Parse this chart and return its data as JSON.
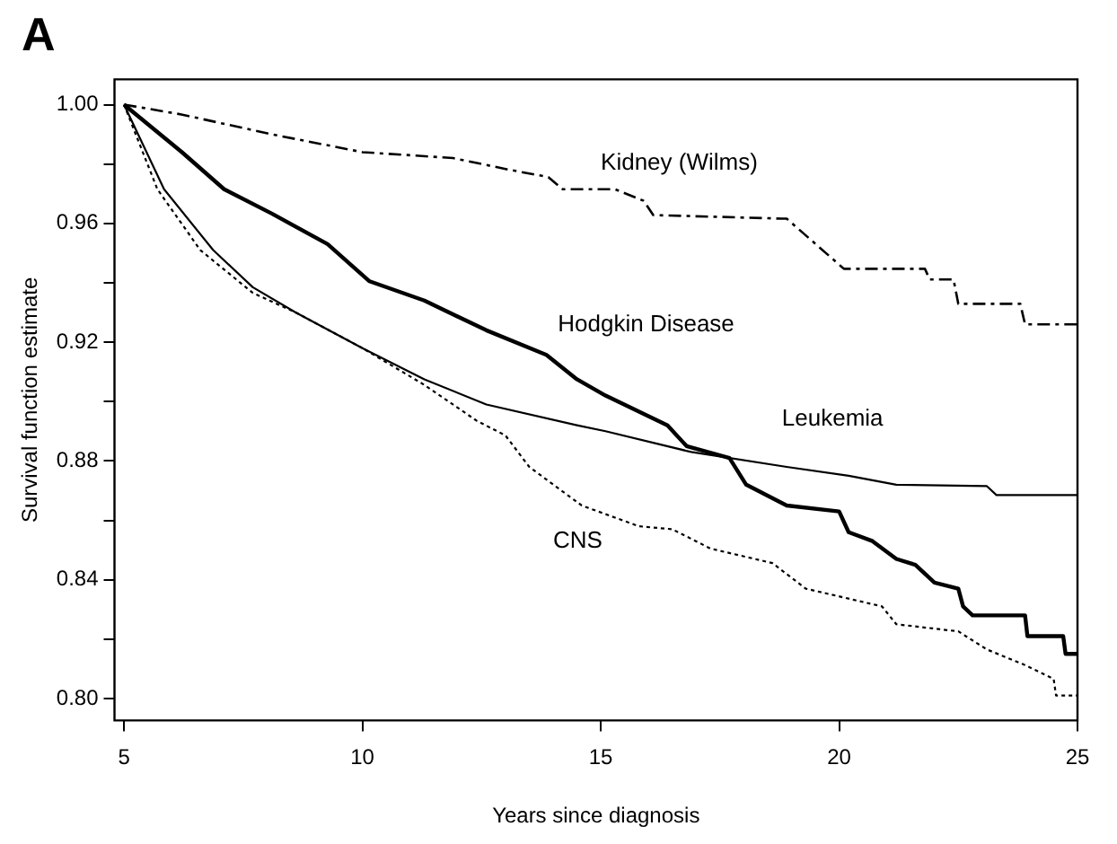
{
  "chart_data": {
    "type": "line",
    "title": "A",
    "xlabel": "Years since diagnosis",
    "ylabel": "Survival function estimate",
    "xlim": [
      4.8,
      25
    ],
    "xticks": [
      5,
      10,
      15,
      20,
      25
    ],
    "ylim": [
      0.7926,
      1.0085
    ],
    "yticks": [
      {
        "value": 0.8,
        "label": "0.80"
      },
      {
        "value": 0.82,
        "label": null
      },
      {
        "value": 0.84,
        "label": "0.84"
      },
      {
        "value": 0.86,
        "label": null
      },
      {
        "value": 0.88,
        "label": "0.88"
      },
      {
        "value": 0.9,
        "label": null
      },
      {
        "value": 0.92,
        "label": "0.92"
      },
      {
        "value": 0.94,
        "label": null
      },
      {
        "value": 0.96,
        "label": "0.96"
      },
      {
        "value": 0.98,
        "label": null
      },
      {
        "value": 1.0,
        "label": "1.00"
      }
    ],
    "grid": false,
    "legend": false,
    "marker": "none",
    "series": [
      {
        "name": "Kidney (Wilms)",
        "color": "#000000",
        "line_style": "dashed",
        "x": [
          5,
          6.2,
          8.1,
          10,
          11.9,
          13.1,
          13.9,
          14.2,
          15.3,
          15.9,
          16.1,
          18.8,
          18.9,
          20.1,
          21.8,
          21.9,
          22.4,
          22.5,
          23.8,
          23.9,
          25
        ],
        "values": [
          1.0,
          0.9967,
          0.99,
          0.984,
          0.982,
          0.978,
          0.9756,
          0.9715,
          0.9715,
          0.9676,
          0.9628,
          0.9616,
          0.9616,
          0.9447,
          0.9447,
          0.9411,
          0.9411,
          0.9329,
          0.9329,
          0.926,
          0.926
        ]
      },
      {
        "name": "Hodgkin Disease",
        "color": "#000000",
        "line_style": "solid",
        "x": [
          5,
          6.22,
          7.1,
          8.1,
          9.27,
          10.15,
          11.3,
          12.6,
          13.86,
          14.5,
          15.1,
          16.4,
          16.8,
          17.7,
          18.05,
          18.9,
          20,
          20.2,
          20.7,
          21.2,
          21.6,
          22,
          22.5,
          22.6,
          22.8,
          23.9,
          23.95,
          24.7,
          24.75,
          25
        ],
        "values": [
          1.0,
          0.9839,
          0.9715,
          0.9633,
          0.953,
          0.9405,
          0.934,
          0.924,
          0.9157,
          0.9075,
          0.902,
          0.892,
          0.885,
          0.881,
          0.872,
          0.865,
          0.863,
          0.856,
          0.853,
          0.847,
          0.845,
          0.839,
          0.837,
          0.831,
          0.828,
          0.828,
          0.821,
          0.821,
          0.815,
          0.815
        ]
      },
      {
        "name": "Leukemia",
        "color": "#000000",
        "line_style": "solid",
        "x": [
          5,
          5.84,
          6.87,
          7.7,
          8.6,
          10,
          11.3,
          12.6,
          14.5,
          15.1,
          16.9,
          18.9,
          20.2,
          21.2,
          23.1,
          23.3,
          25
        ],
        "values": [
          1.0,
          0.9715,
          0.951,
          0.9385,
          0.93,
          0.918,
          0.9075,
          0.899,
          0.892,
          0.89,
          0.883,
          0.878,
          0.875,
          0.872,
          0.8715,
          0.8685,
          0.8685
        ]
      },
      {
        "name": "CNS",
        "color": "#000000",
        "line_style": "dotted",
        "x": [
          5,
          5.7,
          6.6,
          7.7,
          8.6,
          10,
          11.3,
          12.4,
          13,
          13.5,
          14.6,
          15.8,
          16.5,
          17.3,
          18.6,
          19.3,
          20.9,
          21.2,
          22.5,
          23.1,
          23.85,
          24.5,
          24.55,
          25
        ],
        "values": [
          1.0,
          0.9715,
          0.951,
          0.9366,
          0.93,
          0.918,
          0.9056,
          0.8935,
          0.8886,
          0.878,
          0.865,
          0.858,
          0.857,
          0.8505,
          0.8456,
          0.837,
          0.831,
          0.825,
          0.8226,
          0.8165,
          0.8116,
          0.8066,
          0.801,
          0.801
        ]
      }
    ]
  }
}
